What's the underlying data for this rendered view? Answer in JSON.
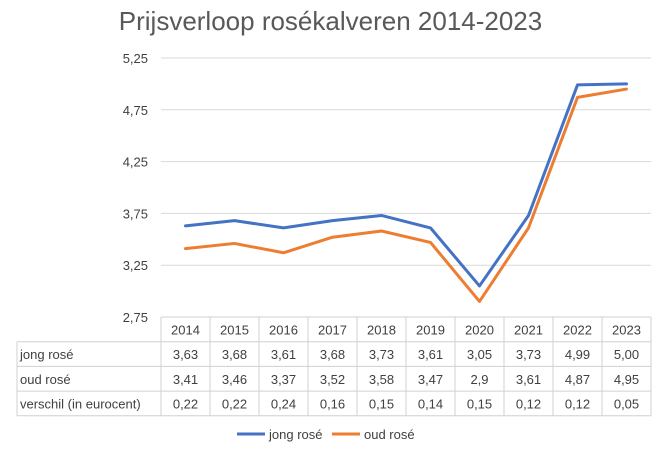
{
  "chart_data": {
    "type": "line",
    "title": "Prijsverloop rosékalveren 2014-2023",
    "categories": [
      "2014",
      "2015",
      "2016",
      "2017",
      "2018",
      "2019",
      "2020",
      "2021",
      "2022",
      "2023"
    ],
    "ylim": [
      2.75,
      5.25
    ],
    "yticks": [
      "5,25",
      "4,75",
      "4,25",
      "3,75",
      "3,25",
      "2,75"
    ],
    "grid": true,
    "legend": "bottom",
    "series": [
      {
        "name": "jong rosé",
        "color": "#4472C4",
        "values": [
          3.63,
          3.68,
          3.61,
          3.68,
          3.73,
          3.61,
          3.05,
          3.73,
          4.99,
          5.0
        ],
        "labels": [
          "3,63",
          "3,68",
          "3,61",
          "3,68",
          "3,73",
          "3,61",
          "3,05",
          "3,73",
          "4,99",
          "5,00"
        ]
      },
      {
        "name": "oud rosé",
        "color": "#ED7D31",
        "values": [
          3.41,
          3.46,
          3.37,
          3.52,
          3.58,
          3.47,
          2.9,
          3.61,
          4.87,
          4.95
        ],
        "labels": [
          "3,41",
          "3,46",
          "3,37",
          "3,52",
          "3,58",
          "3,47",
          "2,9",
          "3,61",
          "4,87",
          "4,95"
        ]
      }
    ],
    "table_extra_row": {
      "name": "verschil (in eurocent)",
      "labels": [
        "0,22",
        "0,22",
        "0,24",
        "0,16",
        "0,15",
        "0,14",
        "0,15",
        "0,12",
        "0,12",
        "0,05"
      ]
    }
  }
}
